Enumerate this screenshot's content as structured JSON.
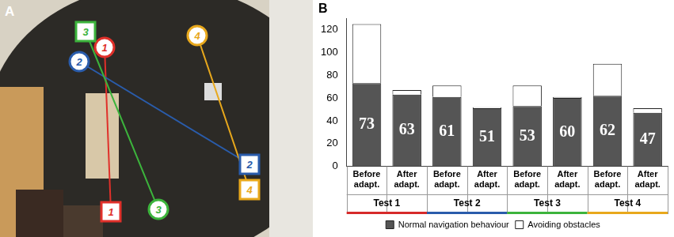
{
  "panel_a": {
    "label": "A",
    "routes": [
      {
        "label": "1",
        "color": "#e0302a"
      },
      {
        "label": "2",
        "color": "#2a5cab"
      },
      {
        "label": "3",
        "color": "#3cb43c"
      },
      {
        "label": "4",
        "color": "#e8a81c"
      }
    ]
  },
  "chart_data": {
    "type": "bar",
    "title": "B",
    "categories": [
      "Before adapt.",
      "After adapt.",
      "Before adapt.",
      "After adapt.",
      "Before adapt.",
      "After adapt.",
      "Before adapt.",
      "After adapt."
    ],
    "groups": [
      {
        "name": "Test 1",
        "color": "#d62a2a"
      },
      {
        "name": "Test 2",
        "color": "#2a5cab"
      },
      {
        "name": "Test 3",
        "color": "#3cb43c"
      },
      {
        "name": "Test 4",
        "color": "#e8a81c"
      }
    ],
    "series": [
      {
        "name": "Normal navigation behaviour",
        "color": "#555555",
        "values": [
          73,
          63,
          61,
          51,
          53,
          60,
          62,
          47
        ],
        "data_labels": true
      },
      {
        "name": "Avoiding obstacles",
        "color": "#ffffff",
        "values": [
          52,
          4,
          10,
          1,
          18,
          1,
          28,
          4
        ]
      }
    ],
    "stacked": true,
    "ylim": [
      0,
      130
    ],
    "yticks": [
      0,
      20,
      40,
      60,
      80,
      100,
      120
    ],
    "grid": false,
    "legend": "bottom"
  }
}
